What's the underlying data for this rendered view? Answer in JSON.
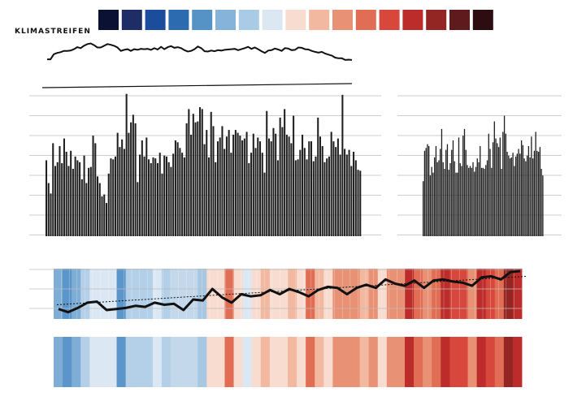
{
  "title": "KLIMASTREIFEN",
  "colors": {
    "legend_swatches": [
      "#0b1133",
      "#1f2d66",
      "#1c4c9c",
      "#2c6bb0",
      "#5593c7",
      "#86b3da",
      "#a9cbe5",
      "#dbe8f4",
      "#f8dcd0",
      "#f2b8a0",
      "#e99174",
      "#e06d54",
      "#d8473b",
      "#bb2c2b",
      "#932523",
      "#5e1a1c",
      "#2d0c12"
    ],
    "bar": "#1f1f1f",
    "line": "#111111",
    "grid": "#bdbdbd"
  },
  "chart_data": [
    {
      "type": "line",
      "series": [
        {
          "values": [
            0.55,
            0.55,
            0.7,
            0.74,
            0.76,
            0.8,
            0.8,
            0.81,
            0.85,
            0.91,
            0.88,
            0.95,
            1.0,
            1.02,
            0.97,
            0.9,
            0.9,
            0.95,
            1.0,
            0.98,
            0.95,
            0.9,
            0.8,
            0.83,
            0.85,
            0.8,
            0.85,
            0.83,
            0.86,
            0.85,
            0.86,
            0.83,
            0.88,
            0.84,
            0.92,
            0.85,
            0.91,
            0.94,
            0.89,
            0.91,
            0.88,
            0.82,
            0.78,
            0.8,
            0.85,
            0.93,
            0.88,
            0.79,
            0.78,
            0.81,
            0.79,
            0.82,
            0.81,
            0.83,
            0.84,
            0.85,
            0.86,
            0.82,
            0.85,
            0.88,
            0.92,
            0.86,
            0.9,
            0.85,
            0.79,
            0.74,
            0.81,
            0.82,
            0.87,
            0.84,
            0.8,
            0.88,
            0.87,
            0.82,
            0.83,
            0.9,
            0.89,
            0.85,
            0.84,
            0.8,
            0.77,
            0.75,
            0.77,
            0.72,
            0.69,
            0.66,
            0.6,
            0.58,
            0.58,
            0.53,
            0.54,
            0.53
          ]
        }
      ],
      "ylim": [
        0,
        1.2
      ]
    },
    {
      "type": "bar",
      "series": [
        {
          "values": [
            80,
            56,
            45,
            98,
            74,
            78,
            95,
            77,
            103,
            89,
            74,
            90,
            71,
            84,
            80,
            78,
            60,
            85,
            56,
            72,
            73,
            106,
            98,
            63,
            56,
            42,
            44,
            35,
            66,
            82,
            81,
            84,
            109,
            94,
            102,
            92,
            150,
            109,
            120,
            128,
            119,
            57,
            86,
            101,
            84,
            104,
            81,
            77,
            83,
            82,
            77,
            88,
            66,
            85,
            84,
            78,
            73,
            87,
            101,
            99,
            93,
            88,
            83,
            119,
            134,
            107,
            129,
            120,
            121,
            136,
            134,
            97,
            112,
            83,
            131,
            116,
            78,
            100,
            104,
            116,
            92,
            105,
            112,
            88,
            107,
            112,
            109,
            106,
            101,
            103,
            110,
            77,
            88,
            108,
            93,
            104,
            100,
            88,
            67,
            132,
            103,
            100,
            114,
            108,
            80,
            125,
            115,
            134,
            107,
            105,
            98,
            127,
            80,
            81,
            91,
            107,
            93,
            81,
            100,
            100,
            79,
            84,
            125,
            105,
            95,
            78,
            82,
            84,
            110,
            100,
            94,
            103,
            86,
            149,
            92,
            86,
            91,
            74,
            89,
            80,
            70,
            69
          ],
          "__name": "left_block"
        },
        {
          "values": [
            58,
            90,
            93,
            97,
            95,
            64,
            73,
            67,
            83,
            95,
            78,
            80,
            92,
            113,
            78,
            71,
            91,
            97,
            70,
            77,
            91,
            101,
            79,
            67,
            67,
            104,
            77,
            74,
            106,
            113,
            91,
            75,
            72,
            74,
            72,
            78,
            68,
            73,
            82,
            78,
            95,
            72,
            72,
            71,
            75,
            80,
            108,
            92,
            72,
            99,
            121,
            103,
            98,
            94,
            104,
            71,
            110,
            127,
            108,
            89,
            85,
            82,
            83,
            88,
            74,
            84,
            87,
            92,
            87,
            101,
            96,
            82,
            79,
            85,
            95,
            83,
            105,
            82,
            90,
            110,
            90,
            89,
            94,
            71,
            64
          ],
          "__name": "right_block"
        }
      ],
      "ylim": [
        0,
        160
      ]
    },
    {
      "type": "heatmap",
      "colors": [
        "#7eadd6",
        "#5b95c9",
        "#7eadd6",
        "#b3d0e8",
        "#dbe8f4",
        "#dbe8f4",
        "#dbe8f4",
        "#5b95c9",
        "#b3d0e8",
        "#b3d0e8",
        "#b3d0e8",
        "#dbe8f4",
        "#b3d0e8",
        "#c4d8ec",
        "#c4d8ec",
        "#c4d8ec",
        "#a7c7e3",
        "#f8dcd0",
        "#f8dcd0",
        "#e06d54",
        "#f8dcd0",
        "#dbe8f4",
        "#f8dcd0",
        "#f2b8a0",
        "#f8dcd0",
        "#f8dcd0",
        "#f2b8a0",
        "#f8dcd0",
        "#e06d54",
        "#f2b8a0",
        "#f8dcd0",
        "#e99174",
        "#e99174",
        "#e99174",
        "#f2b8a0",
        "#e99174",
        "#f8dcd0",
        "#e99174",
        "#e99174",
        "#bb2c2b",
        "#e06d54",
        "#e99174",
        "#e06d54",
        "#bb2c2b",
        "#d8473b",
        "#d8473b",
        "#e99174",
        "#bb2c2b",
        "#d8473b",
        "#e06d54",
        "#932523",
        "#bb2c2b"
      ]
    },
    {
      "type": "line",
      "series": [
        {
          "values": [
            8.1,
            7.8,
            8.2,
            8.7,
            8.8,
            8.0,
            8.1,
            8.2,
            8.4,
            8.3,
            8.7,
            8.5,
            8.6,
            8.0,
            9.0,
            8.9,
            10.0,
            9.2,
            8.7,
            9.5,
            9.3,
            9.4,
            9.9,
            9.5,
            10.0,
            9.7,
            9.3,
            9.9,
            10.2,
            10.1,
            9.5,
            10.1,
            10.4,
            10.1,
            10.9,
            10.5,
            10.3,
            10.8,
            10.1,
            10.8,
            10.9,
            10.7,
            10.6,
            10.3,
            11.1,
            11.2,
            10.9,
            11.6,
            11.7
          ]
        },
        {
          "values": [
            8.5,
            11.2
          ]
        }
      ],
      "ylim": [
        7,
        12
      ]
    }
  ]
}
